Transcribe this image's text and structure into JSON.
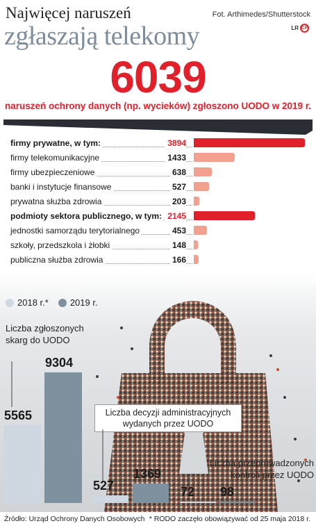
{
  "header": {
    "title_line1": "Najwięcej naruszeń",
    "title_line2": "zgłaszają telekomy",
    "photo_credit": "Fot. Arthimedes/Shutterstock",
    "logo_text": "LR",
    "logo_mark": "CP",
    "big_number": "6039",
    "subtitle": "naruszeń ochrony danych (np. wycieków) zgłoszono UODO w 2019 r."
  },
  "colors": {
    "accent_red": "#e0202a",
    "light_salmon": "#f2a08f",
    "series_2018": "#cfd8e0",
    "series_2019": "#7f919f"
  },
  "chart_data": [
    {
      "type": "bar",
      "orientation": "horizontal",
      "categories": [
        "firmy prywatne, w tym:",
        "firmy telekomunikacyjne",
        "firmy ubezpieczeniowe",
        "banki i instytucje finansowe",
        "prywatna służba zdrowia",
        "podmioty sektora publicznego, w tym:",
        "jednostki samorządu terytorialnego",
        "szkoły, przedszkola i żłobki",
        "publiczna służba zdrowia"
      ],
      "values": [
        3894,
        1433,
        638,
        527,
        203,
        2145,
        453,
        148,
        166
      ],
      "bold": [
        true,
        false,
        false,
        false,
        false,
        true,
        false,
        false,
        false
      ],
      "highlight": [
        true,
        false,
        false,
        false,
        false,
        true,
        false,
        false,
        false
      ]
    },
    {
      "type": "bar",
      "title": "Liczba zgłoszonych skarg do UODO",
      "legend": [
        "2018 r.*",
        "2019 r."
      ],
      "series": [
        {
          "name": "2018 r.*",
          "values": [
            5565
          ]
        },
        {
          "name": "2019 r.",
          "values": [
            9304
          ]
        }
      ]
    },
    {
      "type": "bar",
      "title": "Liczba decyzji administracyjnych wydanych przez UODO",
      "series": [
        {
          "name": "2018 r.*",
          "values": [
            527
          ]
        },
        {
          "name": "2019 r.",
          "values": [
            1369
          ]
        }
      ]
    },
    {
      "type": "bar",
      "title": "Liczba przeprowadzonych kontroli przez UODO",
      "series": [
        {
          "name": "2018 r.*",
          "values": [
            72
          ]
        },
        {
          "name": "2019 r.",
          "values": [
            98
          ]
        }
      ]
    }
  ],
  "footer": {
    "source": "Źródło: Urząd Ochrony Danych Osobowych",
    "note": "* RODO zaczęło obowiązywać od 25 maja 2018 r."
  }
}
